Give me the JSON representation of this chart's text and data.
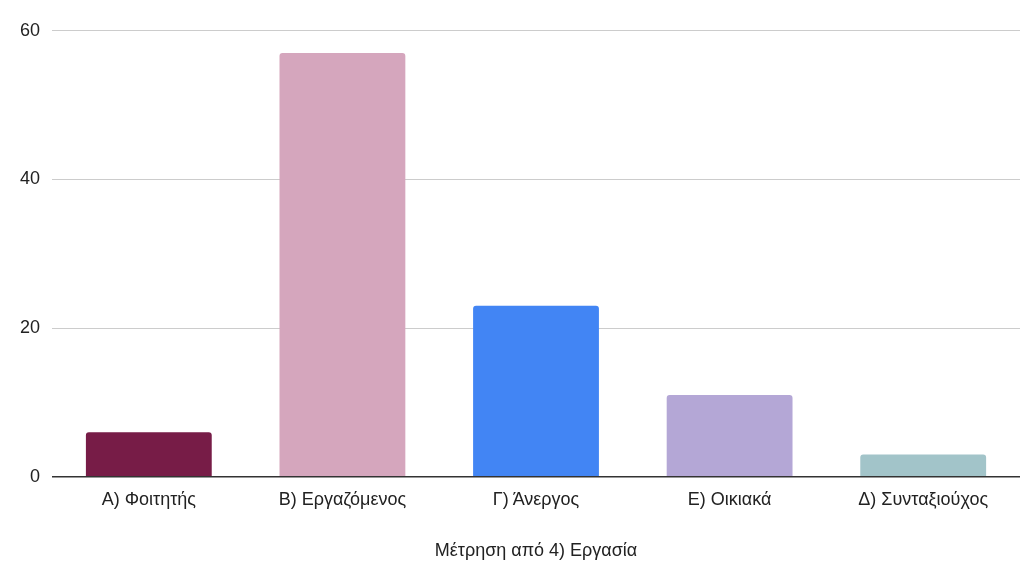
{
  "chart_data": {
    "type": "bar",
    "xlabel": "Μέτρηση από 4) Εργασία",
    "categories": [
      "A) Φοιτητής",
      "B) Εργαζόμενος",
      "Γ) Άνεργος",
      "E) Οικιακά",
      "Δ) Συνταξιούχος"
    ],
    "values": [
      6,
      57,
      23,
      11,
      3
    ],
    "colors": [
      "#771c47",
      "#d5a6bd",
      "#4285f4",
      "#b4a7d6",
      "#a2c4c9"
    ],
    "ylim": [
      0,
      60
    ],
    "yticks": [
      0,
      20,
      40,
      60
    ],
    "grid": "y",
    "legend": false
  }
}
